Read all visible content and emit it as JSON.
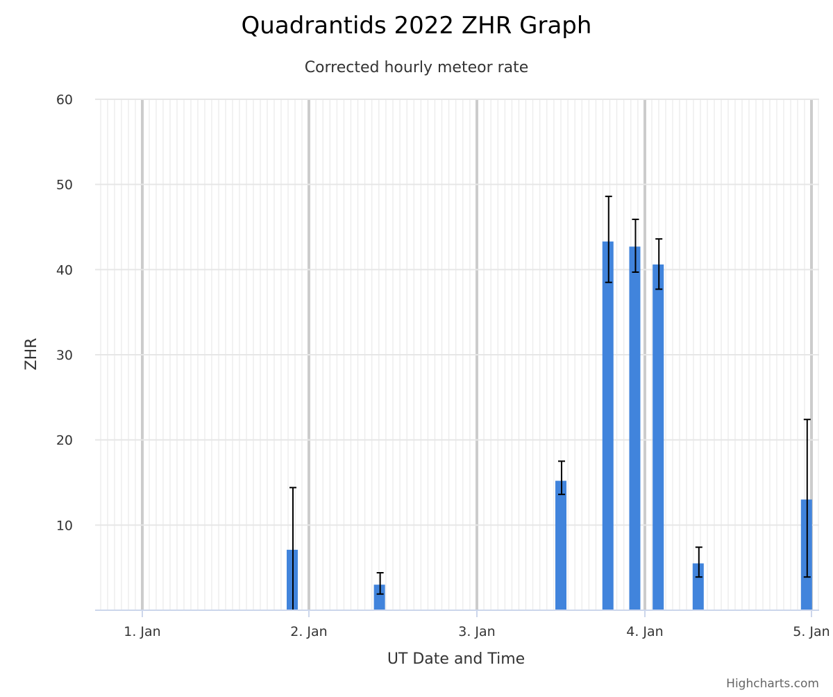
{
  "chart_data": {
    "type": "bar",
    "title": "Quadrantids 2022 ZHR Graph",
    "subtitle": "Corrected hourly meteor rate",
    "xlabel": "UT Date and Time",
    "ylabel": "ZHR",
    "x_ticks": [
      {
        "day": 1,
        "label": "1. Jan"
      },
      {
        "day": 2,
        "label": "2. Jan"
      },
      {
        "day": 3,
        "label": "3. Jan"
      },
      {
        "day": 4,
        "label": "4. Jan"
      },
      {
        "day": 5,
        "label": "5. Jan"
      }
    ],
    "xlim_days": [
      0.7,
      5.05
    ],
    "ylim": [
      0,
      60
    ],
    "y_ticks": [
      10,
      20,
      30,
      40,
      50,
      60
    ],
    "grid": true,
    "minor_grid_hours": 1,
    "series": [
      {
        "color": "#4184dc",
        "points": [
          {
            "day": 1.9,
            "value": 7.1,
            "error_low": 0.0,
            "error_high": 14.4
          },
          {
            "day": 2.42,
            "value": 3.0,
            "error_low": 1.9,
            "error_high": 4.4
          },
          {
            "day": 3.5,
            "value": 15.2,
            "error_low": 13.6,
            "error_high": 17.5
          },
          {
            "day": 3.78,
            "value": 43.3,
            "error_low": 38.5,
            "error_high": 48.6
          },
          {
            "day": 3.94,
            "value": 42.7,
            "error_low": 39.7,
            "error_high": 45.9
          },
          {
            "day": 4.08,
            "value": 40.6,
            "error_low": 37.7,
            "error_high": 43.6
          },
          {
            "day": 4.32,
            "value": 5.5,
            "error_low": 3.9,
            "error_high": 7.4
          },
          {
            "day": 4.97,
            "value": 13.0,
            "error_low": 3.9,
            "error_high": 22.4
          }
        ]
      }
    ],
    "error_bar_color": "#000000",
    "grid_color": "#e6e6e6",
    "major_grid_color": "#cccccc",
    "axis_line_color": "#ccd6eb"
  },
  "credits": "Highcharts.com"
}
